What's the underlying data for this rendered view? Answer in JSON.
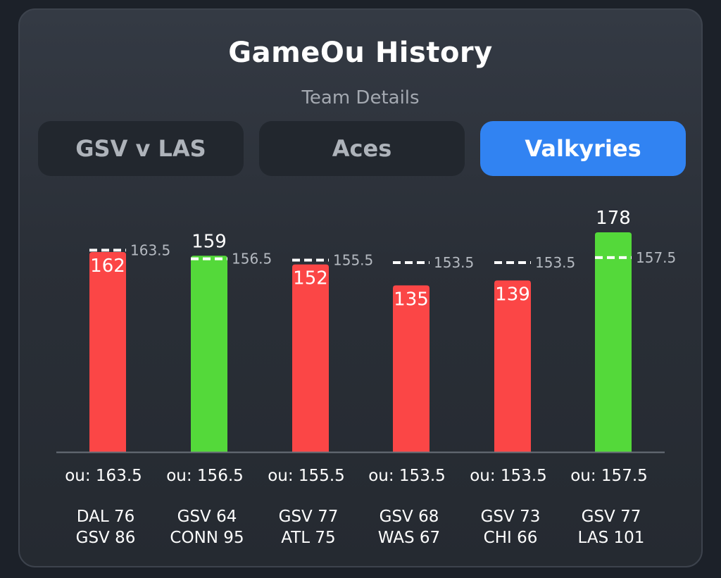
{
  "header": {
    "title": "GameOu History",
    "subtitle": "Team Details"
  },
  "tabs": [
    {
      "label": "GSV v LAS",
      "active": false
    },
    {
      "label": "Aces",
      "active": false
    },
    {
      "label": "Valkyries",
      "active": true
    }
  ],
  "colors": {
    "over": "#54d93a",
    "under": "#fb4646",
    "active_tab": "#3183f2",
    "line_marker": "#ffffff"
  },
  "chart_data": {
    "type": "bar",
    "title": "",
    "xlabel": "",
    "ylabel": "",
    "ylim": [
      0,
      200
    ],
    "grid": false,
    "categories": [
      "DAL 76 / GSV 86",
      "GSV 64 / CONN 95",
      "GSV 77 / ATL 75",
      "GSV 68 / WAS 67",
      "GSV 73 / CHI 66",
      "GSV 77 / LAS 101"
    ],
    "games": [
      {
        "total": 162,
        "line": 163.5,
        "ou_label": "ou: 163.5",
        "result": "under",
        "team1": "DAL 76",
        "team2": "GSV 86"
      },
      {
        "total": 159,
        "line": 156.5,
        "ou_label": "ou: 156.5",
        "result": "over",
        "team1": "GSV 64",
        "team2": "CONN 95"
      },
      {
        "total": 152,
        "line": 155.5,
        "ou_label": "ou: 155.5",
        "result": "under",
        "team1": "GSV 77",
        "team2": "ATL 75"
      },
      {
        "total": 135,
        "line": 153.5,
        "ou_label": "ou: 153.5",
        "result": "under",
        "team1": "GSV 68",
        "team2": "WAS 67"
      },
      {
        "total": 139,
        "line": 153.5,
        "ou_label": "ou: 153.5",
        "result": "under",
        "team1": "GSV 73",
        "team2": "CHI 66"
      },
      {
        "total": 178,
        "line": 157.5,
        "ou_label": "ou: 157.5",
        "result": "over",
        "team1": "GSV 77",
        "team2": "LAS 101"
      }
    ]
  }
}
